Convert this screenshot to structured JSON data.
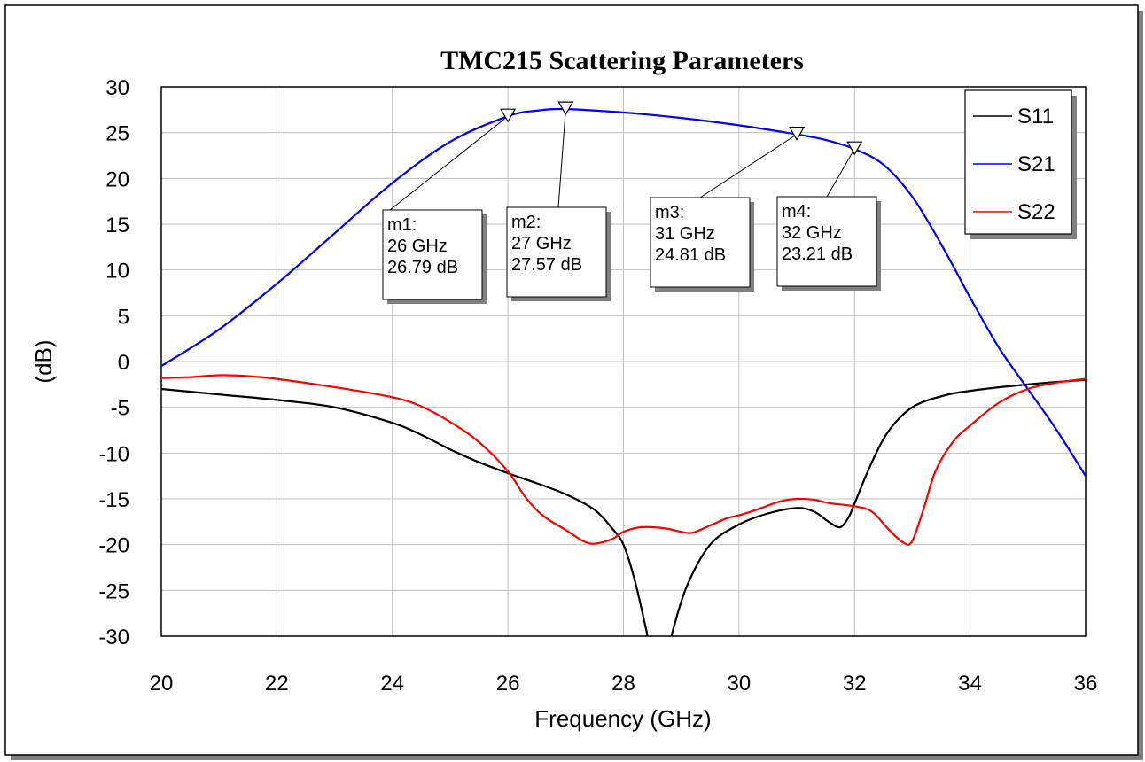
{
  "chart_data": {
    "type": "line",
    "title": "TMC215 Scattering Parameters",
    "xlabel": "Frequency (GHz)",
    "ylabel": "(dB)",
    "xlim": [
      20,
      36
    ],
    "ylim": [
      -30,
      30
    ],
    "xticks": [
      "20",
      "22",
      "24",
      "26",
      "28",
      "30",
      "32",
      "34",
      "36"
    ],
    "yticks": [
      "30",
      "25",
      "20",
      "15",
      "10",
      "5",
      "0",
      "-5",
      "-10",
      "-15",
      "-20",
      "-25",
      "-30"
    ],
    "grid": true,
    "legend_position": "top-right",
    "series": [
      {
        "name": "S11",
        "color": "#000000",
        "points": [
          [
            20,
            -3.0
          ],
          [
            21,
            -3.6
          ],
          [
            22,
            -4.2
          ],
          [
            23,
            -5.0
          ],
          [
            24,
            -6.7
          ],
          [
            24.5,
            -8.0
          ],
          [
            25,
            -9.6
          ],
          [
            25.5,
            -11.0
          ],
          [
            26,
            -12.2
          ],
          [
            26.5,
            -13.3
          ],
          [
            27,
            -14.5
          ],
          [
            27.5,
            -16.2
          ],
          [
            27.8,
            -18.2
          ],
          [
            28,
            -20.0
          ],
          [
            28.2,
            -24.0
          ],
          [
            28.4,
            -29.5
          ],
          [
            28.45,
            -31
          ],
          [
            28.8,
            -31
          ],
          [
            28.85,
            -29.5
          ],
          [
            29.1,
            -24.5
          ],
          [
            29.5,
            -20.0
          ],
          [
            30,
            -17.8
          ],
          [
            30.5,
            -16.6
          ],
          [
            31,
            -16.0
          ],
          [
            31.3,
            -16.4
          ],
          [
            31.55,
            -17.5
          ],
          [
            31.75,
            -18.1
          ],
          [
            31.9,
            -17.0
          ],
          [
            32,
            -15.5
          ],
          [
            32.3,
            -11.0
          ],
          [
            32.6,
            -7.5
          ],
          [
            33,
            -5.0
          ],
          [
            33.5,
            -3.8
          ],
          [
            34,
            -3.2
          ],
          [
            35,
            -2.5
          ],
          [
            36,
            -2.0
          ]
        ]
      },
      {
        "name": "S21",
        "color": "#0000ff",
        "points": [
          [
            20,
            -0.5
          ],
          [
            21,
            3.5
          ],
          [
            22,
            8.5
          ],
          [
            23,
            14.0
          ],
          [
            24,
            19.5
          ],
          [
            25,
            24.0
          ],
          [
            26,
            26.79
          ],
          [
            26.5,
            27.4
          ],
          [
            27,
            27.57
          ],
          [
            28,
            27.2
          ],
          [
            29,
            26.6
          ],
          [
            30,
            25.8
          ],
          [
            31,
            24.81
          ],
          [
            31.5,
            24.2
          ],
          [
            32,
            23.21
          ],
          [
            32.5,
            21.5
          ],
          [
            33,
            18.0
          ],
          [
            33.5,
            12.8
          ],
          [
            34,
            7.0
          ],
          [
            34.5,
            1.5
          ],
          [
            35,
            -3.0
          ],
          [
            35.5,
            -7.5
          ],
          [
            36,
            -12.5
          ]
        ]
      },
      {
        "name": "S22",
        "color": "#ff0000",
        "points": [
          [
            20,
            -1.8
          ],
          [
            20.5,
            -1.7
          ],
          [
            21,
            -1.5
          ],
          [
            21.5,
            -1.6
          ],
          [
            22,
            -1.9
          ],
          [
            23,
            -2.8
          ],
          [
            24,
            -3.9
          ],
          [
            24.5,
            -4.9
          ],
          [
            25,
            -6.6
          ],
          [
            25.5,
            -8.8
          ],
          [
            26,
            -12.0
          ],
          [
            26.3,
            -14.8
          ],
          [
            26.6,
            -16.8
          ],
          [
            27,
            -18.4
          ],
          [
            27.3,
            -19.6
          ],
          [
            27.5,
            -19.9
          ],
          [
            27.8,
            -19.4
          ],
          [
            28,
            -18.6
          ],
          [
            28.3,
            -18.1
          ],
          [
            28.7,
            -18.2
          ],
          [
            29,
            -18.6
          ],
          [
            29.2,
            -18.7
          ],
          [
            29.5,
            -17.9
          ],
          [
            29.8,
            -17.1
          ],
          [
            30,
            -16.8
          ],
          [
            30.3,
            -16.2
          ],
          [
            30.7,
            -15.3
          ],
          [
            31,
            -15.0
          ],
          [
            31.3,
            -15.1
          ],
          [
            31.6,
            -15.5
          ],
          [
            32,
            -15.8
          ],
          [
            32.3,
            -16.4
          ],
          [
            32.6,
            -18.4
          ],
          [
            32.85,
            -19.8
          ],
          [
            33,
            -19.6
          ],
          [
            33.2,
            -16.0
          ],
          [
            33.4,
            -12.0
          ],
          [
            33.7,
            -8.8
          ],
          [
            34,
            -7.0
          ],
          [
            34.5,
            -4.5
          ],
          [
            35,
            -3.0
          ],
          [
            35.5,
            -2.3
          ],
          [
            36,
            -1.9
          ]
        ]
      }
    ],
    "markers": [
      {
        "label": "m1:",
        "freq": "26 GHz",
        "value": "26.79 dB",
        "x": 26,
        "y": 26.79
      },
      {
        "label": "m2:",
        "freq": "27 GHz",
        "value": "27.57 dB",
        "x": 27,
        "y": 27.57
      },
      {
        "label": "m3:",
        "freq": "31 GHz",
        "value": "24.81 dB",
        "x": 31,
        "y": 24.81
      },
      {
        "label": "m4:",
        "freq": "32 GHz",
        "value": "23.21 dB",
        "x": 32,
        "y": 23.21
      }
    ]
  }
}
